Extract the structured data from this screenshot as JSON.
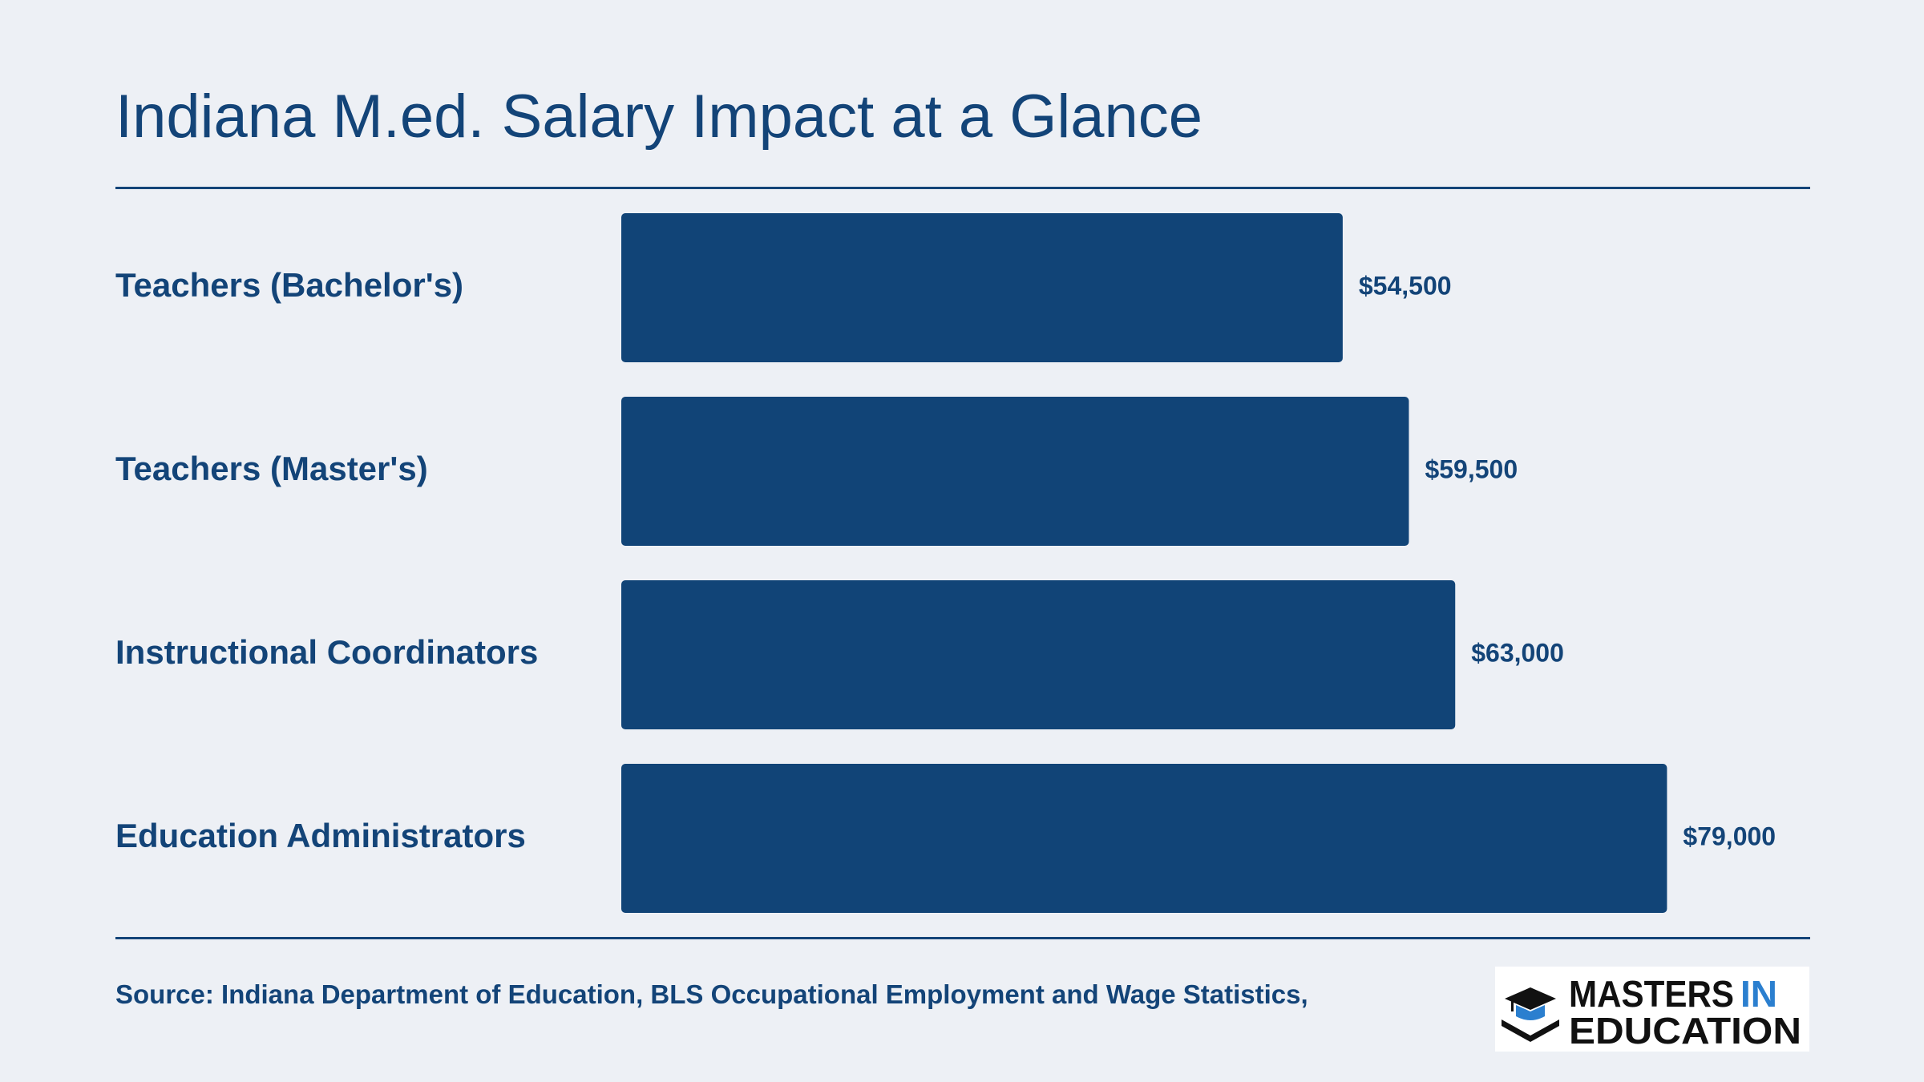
{
  "title": "Indiana M.ed. Salary Impact at a Glance",
  "source": "Source: Indiana Department of Education, BLS Occupational Employment and Wage Statistics,",
  "logo": {
    "line1_a": "MASTERS",
    "line1_b": "IN",
    "line2": "EDUCATION"
  },
  "colors": {
    "bar": "#114477",
    "text": "#134478",
    "background": "#edf0f5",
    "logo_accent": "#2b7fcf"
  },
  "chart_data": {
    "type": "bar",
    "orientation": "horizontal",
    "categories": [
      "Teachers (Bachelor's)",
      "Teachers (Master's)",
      "Instructional Coordinators",
      "Education Administrators"
    ],
    "values": [
      54500,
      59500,
      63000,
      79000
    ],
    "value_labels": [
      "$54,500",
      "$59,500",
      "$63,000",
      "$79,000"
    ],
    "xlim": [
      0,
      86000
    ],
    "grid": false
  }
}
